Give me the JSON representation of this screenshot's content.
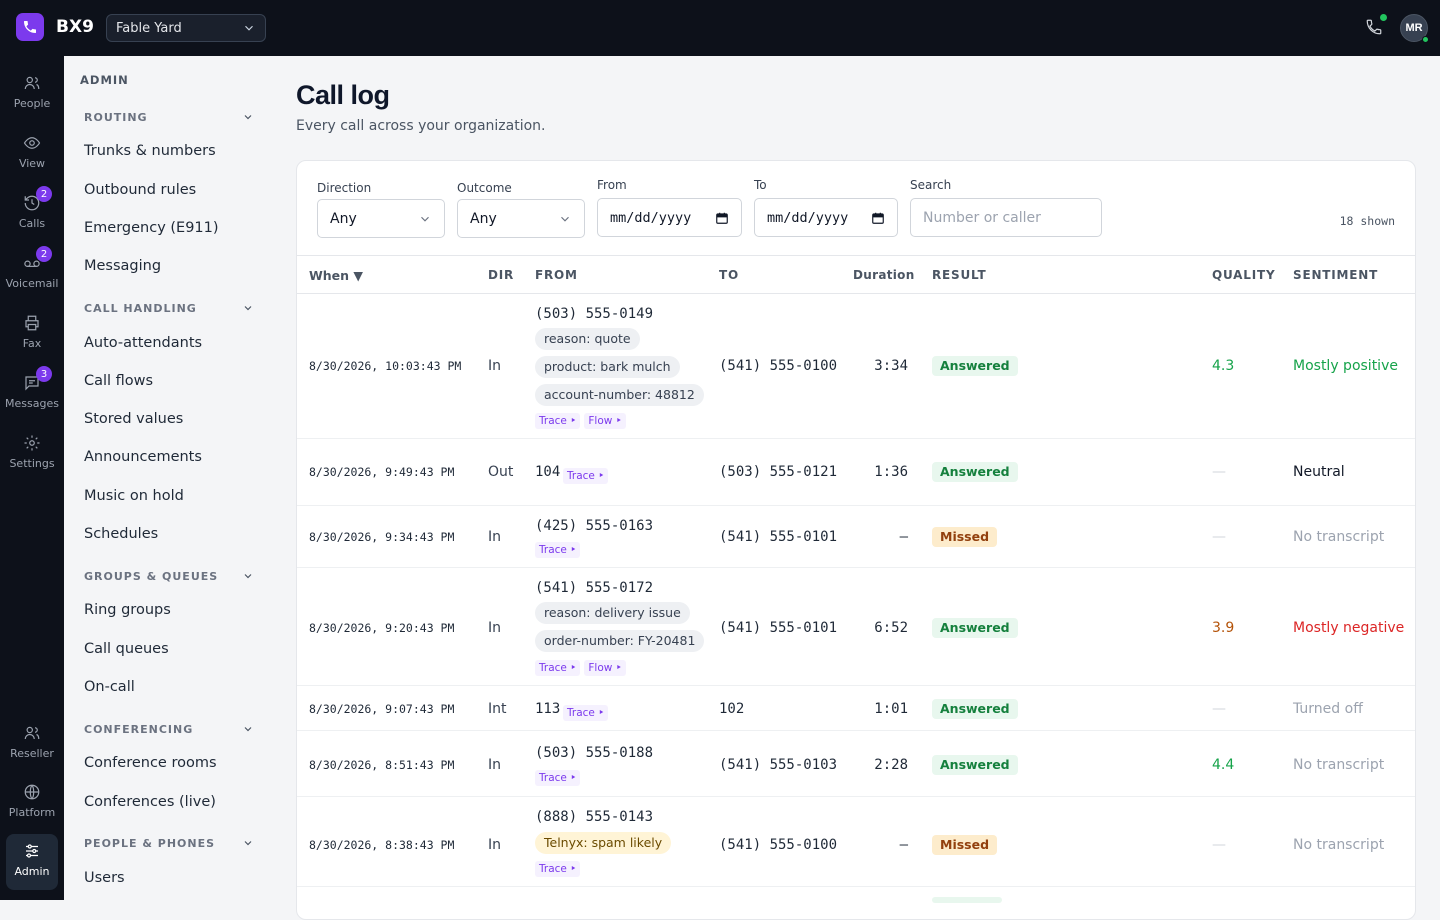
{
  "topbar": {
    "brand": "BX9",
    "org": "Fable Yard",
    "user_initials": "MR"
  },
  "rail": [
    {
      "label": "People",
      "icon": "people-icon"
    },
    {
      "label": "View",
      "icon": "eye-icon"
    },
    {
      "label": "Calls",
      "icon": "history-icon",
      "badge": "2"
    },
    {
      "label": "Voicemail",
      "icon": "voicemail-icon",
      "badge": "2"
    },
    {
      "label": "Fax",
      "icon": "printer-icon"
    },
    {
      "label": "Messages",
      "icon": "message-icon",
      "badge": "3"
    },
    {
      "label": "Settings",
      "icon": "gear-icon"
    },
    {
      "label": "Reseller",
      "icon": "people-icon"
    },
    {
      "label": "Platform",
      "icon": "globe-icon"
    },
    {
      "label": "Admin",
      "icon": "sliders-icon"
    }
  ],
  "sidebar": {
    "heading": "ADMIN",
    "sections": [
      {
        "title": "ROUTING",
        "items": [
          "Trunks & numbers",
          "Outbound rules",
          "Emergency (E911)",
          "Messaging"
        ]
      },
      {
        "title": "CALL HANDLING",
        "items": [
          "Auto-attendants",
          "Call flows",
          "Stored values",
          "Announcements",
          "Music on hold",
          "Schedules"
        ]
      },
      {
        "title": "GROUPS & QUEUES",
        "items": [
          "Ring groups",
          "Call queues",
          "On-call"
        ]
      },
      {
        "title": "CONFERENCING",
        "items": [
          "Conference rooms",
          "Conferences (live)"
        ]
      },
      {
        "title": "PEOPLE & PHONES",
        "items": [
          "Users"
        ]
      }
    ]
  },
  "page": {
    "title": "Call log",
    "subtitle": "Every call across your organization."
  },
  "filters": {
    "direction_label": "Direction",
    "direction_value": "Any",
    "outcome_label": "Outcome",
    "outcome_value": "Any",
    "from_label": "From",
    "from_value": "mm/dd/yyyy",
    "to_label": "To",
    "to_value": "mm/dd/yyyy",
    "search_label": "Search",
    "search_placeholder": "Number or caller",
    "shown": "18 shown"
  },
  "table": {
    "headers": {
      "when": "When ▼",
      "dir": "DIR",
      "from": "FROM",
      "to": "TO",
      "duration": "Duration",
      "result": "RESULT",
      "quality": "QUALITY",
      "sentiment": "SENTIMENT"
    },
    "trace": "Trace ‣",
    "flow": "Flow ‣",
    "rows": [
      {
        "when": "8/30/2026, 10:03:43 PM",
        "dir": "In",
        "from": "(503) 555-0149",
        "tags": [
          "reason: quote",
          "product: bark mulch",
          "account-number: 48812"
        ],
        "to": "(541) 555-0100",
        "duration": "3:34",
        "result": "Answered",
        "quality": "4.3",
        "sentiment": "Mostly positive"
      },
      {
        "when": "8/30/2026, 9:49:43 PM",
        "dir": "Out",
        "from": "104",
        "tags": [],
        "to": "(503) 555-0121",
        "duration": "1:36",
        "result": "Answered",
        "quality": "—",
        "sentiment": "Neutral"
      },
      {
        "when": "8/30/2026, 9:34:43 PM",
        "dir": "In",
        "from": "(425) 555-0163",
        "tags": [],
        "to": "(541) 555-0101",
        "duration": "—",
        "result": "Missed",
        "quality": "—",
        "sentiment": "No transcript"
      },
      {
        "when": "8/30/2026, 9:20:43 PM",
        "dir": "In",
        "from": "(541) 555-0172",
        "tags": [
          "reason: delivery issue",
          "order-number: FY-20481"
        ],
        "to": "(541) 555-0101",
        "duration": "6:52",
        "result": "Answered",
        "quality": "3.9",
        "sentiment": "Mostly negative"
      },
      {
        "when": "8/30/2026, 9:07:43 PM",
        "dir": "Int",
        "from": "113",
        "tags": [],
        "to": "102",
        "duration": "1:01",
        "result": "Answered",
        "quality": "—",
        "sentiment": "Turned off"
      },
      {
        "when": "8/30/2026, 8:51:43 PM",
        "dir": "In",
        "from": "(503) 555-0188",
        "tags": [],
        "to": "(541) 555-0103",
        "duration": "2:28",
        "result": "Answered",
        "quality": "4.4",
        "sentiment": "No transcript"
      },
      {
        "when": "8/30/2026, 8:38:43 PM",
        "dir": "In",
        "from": "(888) 555-0143",
        "tags": [
          "Telnyx: spam likely"
        ],
        "to": "(541) 555-0100",
        "duration": "—",
        "result": "Missed",
        "quality": "—",
        "sentiment": "No transcript"
      }
    ]
  },
  "colors": {
    "accent": "#7c3aed",
    "positive": "#15803d",
    "negative": "#dc2626",
    "quality_mid": "#b45309"
  }
}
